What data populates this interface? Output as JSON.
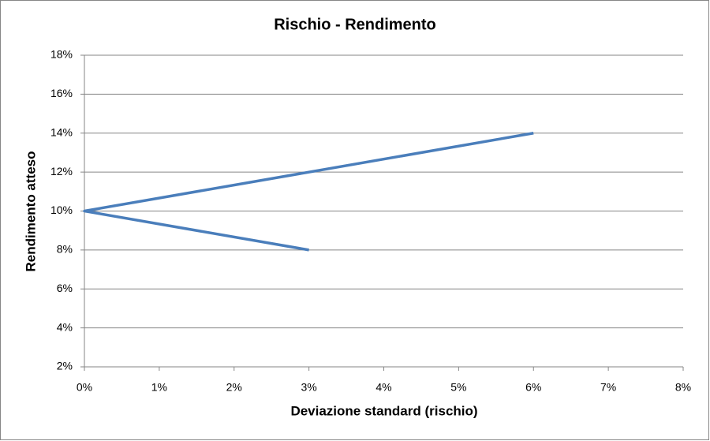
{
  "chart_data": {
    "type": "line",
    "title": "Rischio - Rendimento",
    "x_label": "Deviazione standard (rischio)",
    "y_label": "Rendimento atteso",
    "series": [
      {
        "color": "#4a7ebb",
        "x": [
          3,
          0,
          6
        ],
        "values": [
          8,
          10,
          14
        ]
      }
    ],
    "xlim": [
      0,
      8
    ],
    "xticks": [
      {
        "value": 0,
        "label": "0%"
      },
      {
        "value": 1,
        "label": "1%"
      },
      {
        "value": 2,
        "label": "2%"
      },
      {
        "value": 3,
        "label": "3%"
      },
      {
        "value": 4,
        "label": "4%"
      },
      {
        "value": 5,
        "label": "5%"
      },
      {
        "value": 6,
        "label": "6%"
      },
      {
        "value": 7,
        "label": "7%"
      },
      {
        "value": 8,
        "label": "8%"
      }
    ],
    "ylim": [
      2,
      18
    ],
    "yticks": [
      {
        "value": 2,
        "label": "2%"
      },
      {
        "value": 4,
        "label": "4%"
      },
      {
        "value": 6,
        "label": "6%"
      },
      {
        "value": 8,
        "label": "8%"
      },
      {
        "value": 10,
        "label": "10%"
      },
      {
        "value": 12,
        "label": "12%"
      },
      {
        "value": 14,
        "label": "14%"
      },
      {
        "value": 16,
        "label": "16%"
      },
      {
        "value": 18,
        "label": "18%"
      }
    ],
    "grid": true
  }
}
